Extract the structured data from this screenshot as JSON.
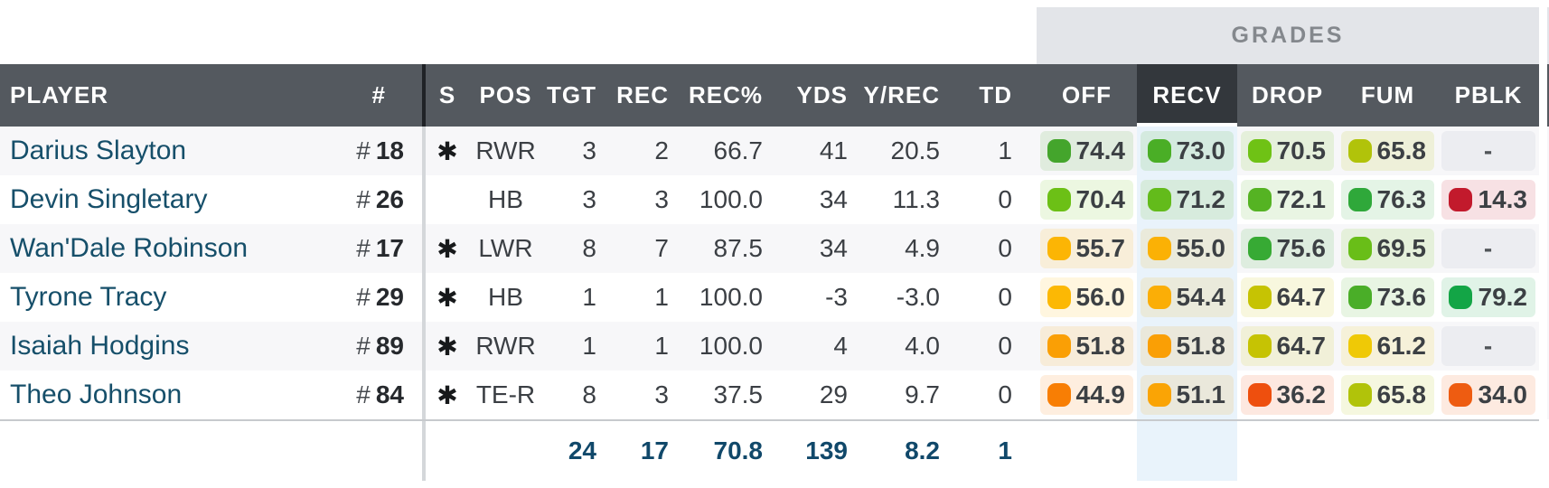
{
  "band": {
    "label": "GRADES"
  },
  "header": {
    "player": "PLAYER",
    "jersey": "#",
    "starter": "S",
    "pos": "POS",
    "tgt": "TGT",
    "rec": "REC",
    "recpct": "REC%",
    "yds": "YDS",
    "yrec": "Y/REC",
    "td": "TD",
    "off": "OFF",
    "recv": "RECV",
    "drop": "DROP",
    "fum": "FUM",
    "pblk": "PBLK",
    "selected_column": "RECV"
  },
  "jersey_prefix": "#",
  "starter_icon": "✱",
  "empty_grade": "-",
  "rows": [
    {
      "name": "Darius Slayton",
      "jersey": "18",
      "starter": true,
      "pos": "RWR",
      "tgt": "3",
      "rec": "2",
      "recpct": "66.7",
      "yds": "41",
      "yrec": "20.5",
      "td": "1",
      "grades": {
        "off": {
          "value": "74.4",
          "color": "#44A52C"
        },
        "recv": {
          "value": "73.0",
          "color": "#4AAE26"
        },
        "drop": {
          "value": "70.5",
          "color": "#6FC215"
        },
        "fum": {
          "value": "65.8",
          "color": "#B1C30A"
        },
        "pblk": null
      }
    },
    {
      "name": "Devin Singletary",
      "jersey": "26",
      "starter": false,
      "pos": "HB",
      "tgt": "3",
      "rec": "3",
      "recpct": "100.0",
      "yds": "34",
      "yrec": "11.3",
      "td": "0",
      "grades": {
        "off": {
          "value": "70.4",
          "color": "#6CC016"
        },
        "recv": {
          "value": "71.2",
          "color": "#63BB1B"
        },
        "drop": {
          "value": "72.1",
          "color": "#55B323"
        },
        "fum": {
          "value": "76.3",
          "color": "#2FA83A"
        },
        "pblk": {
          "value": "14.3",
          "color": "#C21A2C"
        }
      }
    },
    {
      "name": "Wan'Dale Robinson",
      "jersey": "17",
      "starter": true,
      "pos": "LWR",
      "tgt": "8",
      "rec": "7",
      "recpct": "87.5",
      "yds": "34",
      "yrec": "4.9",
      "td": "0",
      "grades": {
        "off": {
          "value": "55.7",
          "color": "#FCB504"
        },
        "recv": {
          "value": "55.0",
          "color": "#FBB105"
        },
        "drop": {
          "value": "75.6",
          "color": "#37AA34"
        },
        "fum": {
          "value": "69.5",
          "color": "#69BE18"
        },
        "pblk": null
      }
    },
    {
      "name": "Tyrone Tracy",
      "jersey": "29",
      "starter": true,
      "pos": "HB",
      "tgt": "1",
      "rec": "1",
      "recpct": "100.0",
      "yds": "-3",
      "yrec": "-3.0",
      "td": "0",
      "grades": {
        "off": {
          "value": "56.0",
          "color": "#FCB804"
        },
        "recv": {
          "value": "54.4",
          "color": "#FBAE06"
        },
        "drop": {
          "value": "64.7",
          "color": "#C6C303"
        },
        "fum": {
          "value": "73.6",
          "color": "#4AAE28"
        },
        "pblk": {
          "value": "79.2",
          "color": "#13A546"
        }
      }
    },
    {
      "name": "Isaiah Hodgins",
      "jersey": "89",
      "starter": true,
      "pos": "RWR",
      "tgt": "1",
      "rec": "1",
      "recpct": "100.0",
      "yds": "4",
      "yrec": "4.0",
      "td": "0",
      "grades": {
        "off": {
          "value": "51.8",
          "color": "#FA9F05"
        },
        "recv": {
          "value": "51.8",
          "color": "#FA9F05"
        },
        "drop": {
          "value": "64.7",
          "color": "#C6C303"
        },
        "fum": {
          "value": "61.2",
          "color": "#EFC906"
        },
        "pblk": null
      }
    },
    {
      "name": "Theo Johnson",
      "jersey": "84",
      "starter": true,
      "pos": "TE-R",
      "tgt": "8",
      "rec": "3",
      "recpct": "37.5",
      "yds": "29",
      "yrec": "9.7",
      "td": "0",
      "grades": {
        "off": {
          "value": "44.9",
          "color": "#F87E04"
        },
        "recv": {
          "value": "51.1",
          "color": "#FAA405"
        },
        "drop": {
          "value": "36.2",
          "color": "#EE4F0E"
        },
        "fum": {
          "value": "65.8",
          "color": "#B1C30A"
        },
        "pblk": {
          "value": "34.0",
          "color": "#EE5C11"
        }
      }
    }
  ],
  "totals": {
    "tgt": "24",
    "rec": "17",
    "recpct": "70.8",
    "yds": "139",
    "yrec": "8.2",
    "td": "1"
  }
}
